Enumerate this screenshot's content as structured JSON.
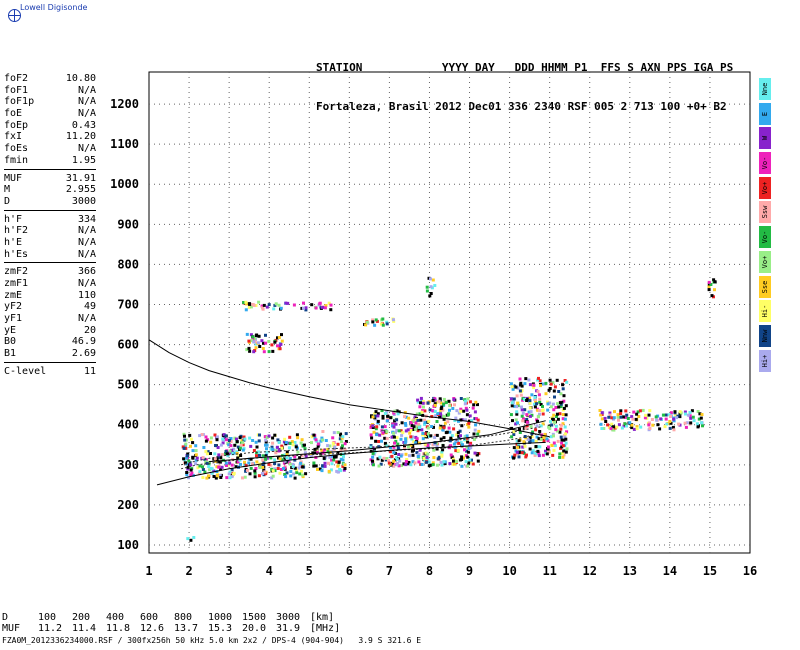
{
  "logo": {
    "text": "Lowell Digisonde",
    "icon": "globe-icon"
  },
  "header": {
    "line1": "STATION            YYYY DAY   DDD HHMM P1  FFS S AXN PPS IGA PS",
    "line2": "Fortaleza, Brasil 2012 Dec01 336 2340 RSF 005 2 713 100 +0+ B2"
  },
  "params": {
    "group1": [
      {
        "name": "foF2",
        "value": "10.80"
      },
      {
        "name": "foF1",
        "value": "N/A"
      },
      {
        "name": "foF1p",
        "value": "N/A"
      },
      {
        "name": "foE",
        "value": "N/A"
      },
      {
        "name": "foEp",
        "value": "0.43"
      },
      {
        "name": "fxI",
        "value": "11.20"
      },
      {
        "name": "foEs",
        "value": "N/A"
      },
      {
        "name": "fmin",
        "value": "1.95"
      }
    ],
    "group2": [
      {
        "name": "MUF",
        "value": "31.91"
      },
      {
        "name": "M",
        "value": "2.955"
      },
      {
        "name": "D",
        "value": "3000"
      }
    ],
    "group3": [
      {
        "name": "h'F",
        "value": "334"
      },
      {
        "name": "h'F2",
        "value": "N/A"
      },
      {
        "name": "h'E",
        "value": "N/A"
      },
      {
        "name": "h'Es",
        "value": "N/A"
      }
    ],
    "group4": [
      {
        "name": "zmF2",
        "value": "366"
      },
      {
        "name": "zmF1",
        "value": "N/A"
      },
      {
        "name": "zmE",
        "value": "110"
      },
      {
        "name": "yF2",
        "value": "49"
      },
      {
        "name": "yF1",
        "value": "N/A"
      },
      {
        "name": "yE",
        "value": "20"
      },
      {
        "name": "B0",
        "value": "46.9"
      },
      {
        "name": "B1",
        "value": "2.69"
      }
    ],
    "group5": [
      {
        "name": "C-level",
        "value": "11"
      }
    ]
  },
  "legend": [
    {
      "label": "Nne",
      "color": "#66eeee"
    },
    {
      "label": "E",
      "color": "#33aaee"
    },
    {
      "label": "W",
      "color": "#8822cc"
    },
    {
      "label": "Vo-",
      "color": "#ee22bb"
    },
    {
      "label": "Vo+",
      "color": "#ee2222"
    },
    {
      "label": "Ssw",
      "color": "#ffaaaa"
    },
    {
      "label": "Vo-",
      "color": "#22bb44"
    },
    {
      "label": "Vo+",
      "color": "#99ee88"
    },
    {
      "label": "Sse",
      "color": "#ffcc22"
    },
    {
      "label": "Hi-",
      "color": "#ffff66"
    },
    {
      "label": "Nnw",
      "color": "#114488"
    },
    {
      "label": "Hi+",
      "color": "#aaaaee"
    }
  ],
  "chart_data": {
    "type": "scatter",
    "xlim": [
      1,
      16
    ],
    "ylim": [
      80,
      1280
    ],
    "x_ticks": [
      "1",
      "2",
      "3",
      "4",
      "5",
      "6",
      "7",
      "8",
      "9",
      "10",
      "11",
      "12",
      "13",
      "14",
      "15",
      "16"
    ],
    "y_ticks": [
      "100",
      "200",
      "300",
      "400",
      "500",
      "600",
      "700",
      "800",
      "900",
      "1000",
      "1100",
      "1200"
    ],
    "grid": true,
    "traces": [
      {
        "name": "o-trace",
        "points": [
          [
            1.8,
            290
          ],
          [
            2.2,
            300
          ],
          [
            2.6,
            305
          ],
          [
            3.0,
            310
          ],
          [
            3.5,
            315
          ],
          [
            4.0,
            320
          ],
          [
            4.5,
            322
          ],
          [
            5.0,
            325
          ],
          [
            5.5,
            327
          ],
          [
            6.0,
            330
          ],
          [
            6.5,
            332
          ],
          [
            7.0,
            335
          ],
          [
            7.5,
            338
          ],
          [
            8.0,
            340
          ],
          [
            8.5,
            343
          ],
          [
            9.0,
            348
          ],
          [
            9.5,
            355
          ],
          [
            10.0,
            362
          ],
          [
            10.4,
            370
          ],
          [
            10.8,
            380
          ]
        ]
      },
      {
        "name": "x-trace",
        "points": [
          [
            1.8,
            300
          ],
          [
            2.2,
            310
          ],
          [
            2.6,
            318
          ],
          [
            3.0,
            325
          ],
          [
            3.5,
            330
          ],
          [
            4.0,
            333
          ],
          [
            4.5,
            336
          ],
          [
            5.0,
            338
          ],
          [
            5.5,
            340
          ],
          [
            6.0,
            342
          ],
          [
            6.5,
            344
          ],
          [
            7.0,
            347
          ],
          [
            7.5,
            350
          ],
          [
            8.0,
            355
          ],
          [
            8.5,
            360
          ],
          [
            9.0,
            365
          ],
          [
            9.5,
            372
          ],
          [
            10.0,
            380
          ],
          [
            10.4,
            388
          ],
          [
            10.8,
            395
          ]
        ]
      }
    ],
    "echo_regions": [
      {
        "x": [
          1.8,
          4.9
        ],
        "y": [
          270,
          380
        ]
      },
      {
        "x": [
          5.0,
          5.9
        ],
        "y": [
          285,
          390
        ]
      },
      {
        "x": [
          6.5,
          7.6
        ],
        "y": [
          300,
          440
        ]
      },
      {
        "x": [
          7.6,
          9.2
        ],
        "y": [
          300,
          470
        ]
      },
      {
        "x": [
          10.0,
          11.4
        ],
        "y": [
          320,
          520
        ]
      },
      {
        "x": [
          12.2,
          14.8
        ],
        "y": [
          390,
          440
        ]
      },
      {
        "x": [
          1.9,
          2.1
        ],
        "y": [
          110,
          130
        ]
      },
      {
        "x": [
          3.3,
          5.6
        ],
        "y": [
          690,
          710
        ]
      },
      {
        "x": [
          6.3,
          7.1
        ],
        "y": [
          650,
          670
        ]
      },
      {
        "x": [
          7.9,
          8.1
        ],
        "y": [
          720,
          770
        ]
      },
      {
        "x": [
          3.4,
          4.3
        ],
        "y": [
          585,
          630
        ]
      },
      {
        "x": [
          14.9,
          15.1
        ],
        "y": [
          720,
          770
        ]
      }
    ],
    "profile": [
      [
        1.0,
        612
      ],
      [
        1.5,
        580
      ],
      [
        2.0,
        555
      ],
      [
        2.5,
        535
      ],
      [
        3.0,
        520
      ],
      [
        3.5,
        505
      ],
      [
        4.0,
        492
      ],
      [
        5.0,
        470
      ],
      [
        6.0,
        450
      ],
      [
        7.0,
        435
      ],
      [
        8.0,
        420
      ],
      [
        9.0,
        408
      ],
      [
        10.0,
        390
      ],
      [
        10.5,
        380
      ],
      [
        11.0,
        370
      ]
    ],
    "model_curves": [
      {
        "points": [
          [
            1.2,
            250
          ],
          [
            2.0,
            270
          ],
          [
            3.0,
            290
          ],
          [
            4.0,
            305
          ],
          [
            5.0,
            318
          ],
          [
            6.0,
            328
          ],
          [
            7.0,
            336
          ],
          [
            8.0,
            342
          ],
          [
            9.0,
            347
          ],
          [
            10.0,
            352
          ],
          [
            10.9,
            356
          ]
        ]
      },
      {
        "points": [
          [
            2.5,
            308
          ],
          [
            4.0,
            320
          ],
          [
            6.0,
            335
          ],
          [
            8.0,
            355
          ],
          [
            9.5,
            375
          ],
          [
            10.5,
            400
          ],
          [
            10.9,
            410
          ]
        ]
      }
    ]
  },
  "muf_table": {
    "d_label": "D",
    "d_values": [
      "100",
      "200",
      "400",
      "600",
      "800",
      "1000",
      "1500",
      "3000"
    ],
    "d_unit": "[km]",
    "muf_label": "MUF",
    "muf_values": [
      "11.2",
      "11.4",
      "11.8",
      "12.6",
      "13.7",
      "15.3",
      "20.0",
      "31.9"
    ],
    "muf_unit": "[MHz]"
  },
  "footer": "FZA0M_2012336234000.RSF / 300fx256h 50 kHz 5.0 km 2x2 / DPS-4 (904-904)   3.9 S 321.6 E"
}
